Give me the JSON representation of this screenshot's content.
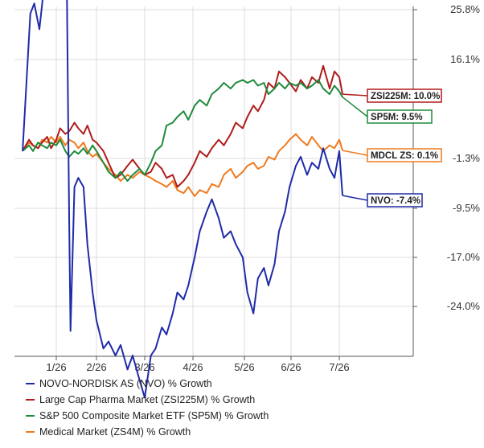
{
  "chart_data": {
    "type": "line",
    "y_axis": {
      "ticks": [
        "25.8%",
        "16.1%",
        "-1.3%",
        "-9.5%",
        "-17.0%",
        "-24.0%"
      ],
      "position": "right"
    },
    "x_axis": {
      "ticks": [
        "1/26",
        "2/26",
        "3/26",
        "4/26",
        "5/26",
        "6/26",
        "7/26"
      ]
    },
    "grid": true,
    "legend_position": "bottom",
    "series": [
      {
        "key": "nvo",
        "name": "NOVO-NORDISK AS (NVO) % Growth",
        "color": "#1f2ba8",
        "label": "NVO: -7.4%",
        "points": [
          [
            "12/31",
            0.0
          ],
          [
            "1/03",
            12.0
          ],
          [
            "1/06",
            25.0
          ],
          [
            "1/09",
            27.0
          ],
          [
            "1/13",
            22.0
          ],
          [
            "1/16",
            29.0
          ],
          [
            "1/19",
            35.0
          ],
          [
            "1/22",
            38.0
          ],
          [
            "1/26",
            36.0
          ],
          [
            "1/28",
            40.0
          ],
          [
            "1/30",
            33.0
          ],
          [
            "2/03",
            34.0
          ],
          [
            "2/05",
            -12.0
          ],
          [
            "2/06",
            -27.5
          ],
          [
            "2/09",
            -6.0
          ],
          [
            "2/12",
            -4.5
          ],
          [
            "2/16",
            -6.0
          ],
          [
            "2/19",
            -15.0
          ],
          [
            "2/23",
            -22.0
          ],
          [
            "2/26",
            -26.0
          ],
          [
            "3/02",
            -30.0
          ],
          [
            "3/05",
            -29.0
          ],
          [
            "3/09",
            -31.0
          ],
          [
            "3/12",
            -29.5
          ],
          [
            "3/16",
            -33.0
          ],
          [
            "3/19",
            -31.0
          ],
          [
            "3/23",
            -34.5
          ],
          [
            "3/26",
            -37.0
          ],
          [
            "3/30",
            -31.0
          ],
          [
            "4/02",
            -30.0
          ],
          [
            "4/06",
            -27.0
          ],
          [
            "4/09",
            -28.0
          ],
          [
            "4/13",
            -25.0
          ],
          [
            "4/16",
            -22.0
          ],
          [
            "4/20",
            -23.0
          ],
          [
            "4/23",
            -21.0
          ],
          [
            "4/27",
            -17.0
          ],
          [
            "4/30",
            -13.0
          ],
          [
            "5/04",
            -10.0
          ],
          [
            "5/07",
            -8.0
          ],
          [
            "5/11",
            -11.0
          ],
          [
            "5/14",
            -14.0
          ],
          [
            "5/18",
            -13.0
          ],
          [
            "5/21",
            -15.0
          ],
          [
            "5/25",
            -17.0
          ],
          [
            "5/28",
            -22.0
          ],
          [
            "6/01",
            -25.0
          ],
          [
            "6/04",
            -20.0
          ],
          [
            "6/08",
            -18.5
          ],
          [
            "6/11",
            -21.0
          ],
          [
            "6/15",
            -18.0
          ],
          [
            "6/18",
            -13.0
          ],
          [
            "6/22",
            -10.0
          ],
          [
            "6/25",
            -6.0
          ],
          [
            "6/29",
            -2.5
          ],
          [
            "7/02",
            -1.0
          ],
          [
            "7/06",
            -4.0
          ],
          [
            "7/09",
            -2.0
          ],
          [
            "7/13",
            -3.0
          ],
          [
            "7/16",
            0.5
          ],
          [
            "7/20",
            -3.0
          ],
          [
            "7/23",
            -4.5
          ],
          [
            "7/26",
            0.0
          ],
          [
            "7/28",
            -7.4
          ]
        ]
      },
      {
        "key": "zsi",
        "name": "Large Cap Pharma Market (ZSI225M) % Growth",
        "color": "#b01c1c",
        "label": "ZSI225M: 10.0%",
        "points": [
          [
            "12/31",
            0.0
          ],
          [
            "1/05",
            2.0
          ],
          [
            "1/08",
            1.0
          ],
          [
            "1/12",
            0.5
          ],
          [
            "1/15",
            1.5
          ],
          [
            "1/19",
            2.5
          ],
          [
            "1/22",
            0.5
          ],
          [
            "1/26",
            2.0
          ],
          [
            "1/29",
            4.0
          ],
          [
            "2/02",
            3.0
          ],
          [
            "2/05",
            3.5
          ],
          [
            "2/09",
            5.0
          ],
          [
            "2/12",
            4.0
          ],
          [
            "2/16",
            3.0
          ],
          [
            "2/19",
            4.5
          ],
          [
            "2/23",
            2.0
          ],
          [
            "2/26",
            1.5
          ],
          [
            "3/02",
            0.0
          ],
          [
            "3/05",
            -2.0
          ],
          [
            "3/09",
            -4.5
          ],
          [
            "3/12",
            -4.0
          ],
          [
            "3/16",
            -2.5
          ],
          [
            "3/19",
            -1.5
          ],
          [
            "3/23",
            -3.0
          ],
          [
            "3/26",
            -4.0
          ],
          [
            "3/30",
            -3.5
          ],
          [
            "4/02",
            -2.0
          ],
          [
            "4/06",
            -3.0
          ],
          [
            "4/09",
            -4.5
          ],
          [
            "4/13",
            -4.0
          ],
          [
            "4/16",
            -6.0
          ],
          [
            "4/20",
            -5.0
          ],
          [
            "4/23",
            -4.0
          ],
          [
            "4/27",
            -2.0
          ],
          [
            "4/30",
            0.0
          ],
          [
            "5/04",
            -1.0
          ],
          [
            "5/07",
            0.5
          ],
          [
            "5/11",
            2.0
          ],
          [
            "5/14",
            1.0
          ],
          [
            "5/18",
            3.0
          ],
          [
            "5/21",
            5.0
          ],
          [
            "5/25",
            4.0
          ],
          [
            "5/28",
            6.0
          ],
          [
            "6/01",
            8.0
          ],
          [
            "6/04",
            7.0
          ],
          [
            "6/08",
            9.0
          ],
          [
            "6/11",
            12.0
          ],
          [
            "6/15",
            11.0
          ],
          [
            "6/18",
            14.0
          ],
          [
            "6/22",
            13.0
          ],
          [
            "6/25",
            12.0
          ],
          [
            "6/29",
            10.5
          ],
          [
            "7/02",
            12.5
          ],
          [
            "7/06",
            11.0
          ],
          [
            "7/09",
            13.0
          ],
          [
            "7/13",
            12.0
          ],
          [
            "7/16",
            15.0
          ],
          [
            "7/20",
            11.0
          ],
          [
            "7/23",
            14.0
          ],
          [
            "7/26",
            13.0
          ],
          [
            "7/28",
            10.0
          ]
        ]
      },
      {
        "key": "sp5",
        "name": "S&P 500 Composite Market ETF (SP5M) % Growth",
        "color": "#1f8a3c",
        "label": "SP5M: 9.5%",
        "points": [
          [
            "12/31",
            0.0
          ],
          [
            "1/05",
            1.0
          ],
          [
            "1/08",
            0.0
          ],
          [
            "1/12",
            1.5
          ],
          [
            "1/15",
            1.0
          ],
          [
            "1/19",
            0.5
          ],
          [
            "1/22",
            1.5
          ],
          [
            "1/26",
            1.0
          ],
          [
            "1/29",
            2.0
          ],
          [
            "2/02",
            0.0
          ],
          [
            "2/05",
            -1.0
          ],
          [
            "2/09",
            0.0
          ],
          [
            "2/12",
            -0.5
          ],
          [
            "2/16",
            0.5
          ],
          [
            "2/19",
            -0.5
          ],
          [
            "2/23",
            1.0
          ],
          [
            "2/26",
            0.0
          ],
          [
            "3/02",
            -2.0
          ],
          [
            "3/05",
            -3.5
          ],
          [
            "3/09",
            -4.5
          ],
          [
            "3/12",
            -3.5
          ],
          [
            "3/16",
            -5.0
          ],
          [
            "3/19",
            -4.0
          ],
          [
            "3/23",
            -3.0
          ],
          [
            "3/26",
            -4.0
          ],
          [
            "3/30",
            -2.0
          ],
          [
            "4/02",
            0.0
          ],
          [
            "4/06",
            1.0
          ],
          [
            "4/09",
            4.5
          ],
          [
            "4/13",
            5.0
          ],
          [
            "4/16",
            6.0
          ],
          [
            "4/20",
            7.0
          ],
          [
            "4/23",
            5.5
          ],
          [
            "4/27",
            8.0
          ],
          [
            "4/30",
            9.0
          ],
          [
            "5/04",
            8.0
          ],
          [
            "5/07",
            10.0
          ],
          [
            "5/11",
            11.0
          ],
          [
            "5/14",
            12.0
          ],
          [
            "5/18",
            11.0
          ],
          [
            "5/21",
            12.0
          ],
          [
            "5/25",
            12.5
          ],
          [
            "5/28",
            12.0
          ],
          [
            "6/01",
            12.5
          ],
          [
            "6/04",
            11.5
          ],
          [
            "6/08",
            12.0
          ],
          [
            "6/11",
            10.0
          ],
          [
            "6/15",
            11.0
          ],
          [
            "6/18",
            12.0
          ],
          [
            "6/22",
            11.0
          ],
          [
            "6/25",
            12.0
          ],
          [
            "6/29",
            11.5
          ],
          [
            "7/02",
            12.0
          ],
          [
            "7/06",
            11.0
          ],
          [
            "7/09",
            11.5
          ],
          [
            "7/13",
            12.5
          ],
          [
            "7/16",
            11.0
          ],
          [
            "7/20",
            10.0
          ],
          [
            "7/23",
            11.5
          ],
          [
            "7/26",
            10.5
          ],
          [
            "7/28",
            9.5
          ]
        ]
      },
      {
        "key": "mdcl",
        "name": "Medical Market (ZS4M) % Growth",
        "color": "#f07a1e",
        "label": "MDCL ZS: 0.1%",
        "points": [
          [
            "12/31",
            0.0
          ],
          [
            "1/05",
            1.5
          ],
          [
            "1/08",
            1.0
          ],
          [
            "1/12",
            0.5
          ],
          [
            "1/15",
            2.0
          ],
          [
            "1/19",
            1.5
          ],
          [
            "1/22",
            2.5
          ],
          [
            "1/26",
            1.5
          ],
          [
            "1/29",
            2.5
          ],
          [
            "2/02",
            1.0
          ],
          [
            "2/05",
            2.0
          ],
          [
            "2/09",
            1.5
          ],
          [
            "2/12",
            0.5
          ],
          [
            "2/16",
            1.5
          ],
          [
            "2/19",
            0.0
          ],
          [
            "2/23",
            -1.0
          ],
          [
            "2/26",
            -0.5
          ],
          [
            "3/02",
            -2.0
          ],
          [
            "3/05",
            -3.0
          ],
          [
            "3/09",
            -4.0
          ],
          [
            "3/12",
            -5.0
          ],
          [
            "3/16",
            -4.0
          ],
          [
            "3/19",
            -4.5
          ],
          [
            "3/23",
            -3.5
          ],
          [
            "3/26",
            -4.0
          ],
          [
            "3/30",
            -4.5
          ],
          [
            "4/02",
            -5.0
          ],
          [
            "4/06",
            -5.5
          ],
          [
            "4/09",
            -6.0
          ],
          [
            "4/13",
            -5.0
          ],
          [
            "4/16",
            -6.5
          ],
          [
            "4/20",
            -7.0
          ],
          [
            "4/23",
            -6.0
          ],
          [
            "4/27",
            -7.5
          ],
          [
            "4/30",
            -6.5
          ],
          [
            "5/04",
            -7.0
          ],
          [
            "5/07",
            -5.5
          ],
          [
            "5/11",
            -6.0
          ],
          [
            "5/14",
            -4.0
          ],
          [
            "5/18",
            -3.0
          ],
          [
            "5/21",
            -4.5
          ],
          [
            "5/25",
            -3.5
          ],
          [
            "5/28",
            -2.5
          ],
          [
            "6/01",
            -2.0
          ],
          [
            "6/04",
            -3.0
          ],
          [
            "6/08",
            -2.5
          ],
          [
            "6/11",
            -1.0
          ],
          [
            "6/15",
            -1.5
          ],
          [
            "6/18",
            0.0
          ],
          [
            "6/22",
            1.0
          ],
          [
            "6/25",
            2.0
          ],
          [
            "6/29",
            3.0
          ],
          [
            "7/02",
            2.0
          ],
          [
            "7/06",
            1.0
          ],
          [
            "7/09",
            2.5
          ],
          [
            "7/13",
            1.0
          ],
          [
            "7/16",
            0.0
          ],
          [
            "7/20",
            1.0
          ],
          [
            "7/23",
            0.5
          ],
          [
            "7/26",
            2.0
          ],
          [
            "7/28",
            0.1
          ]
        ]
      }
    ]
  }
}
